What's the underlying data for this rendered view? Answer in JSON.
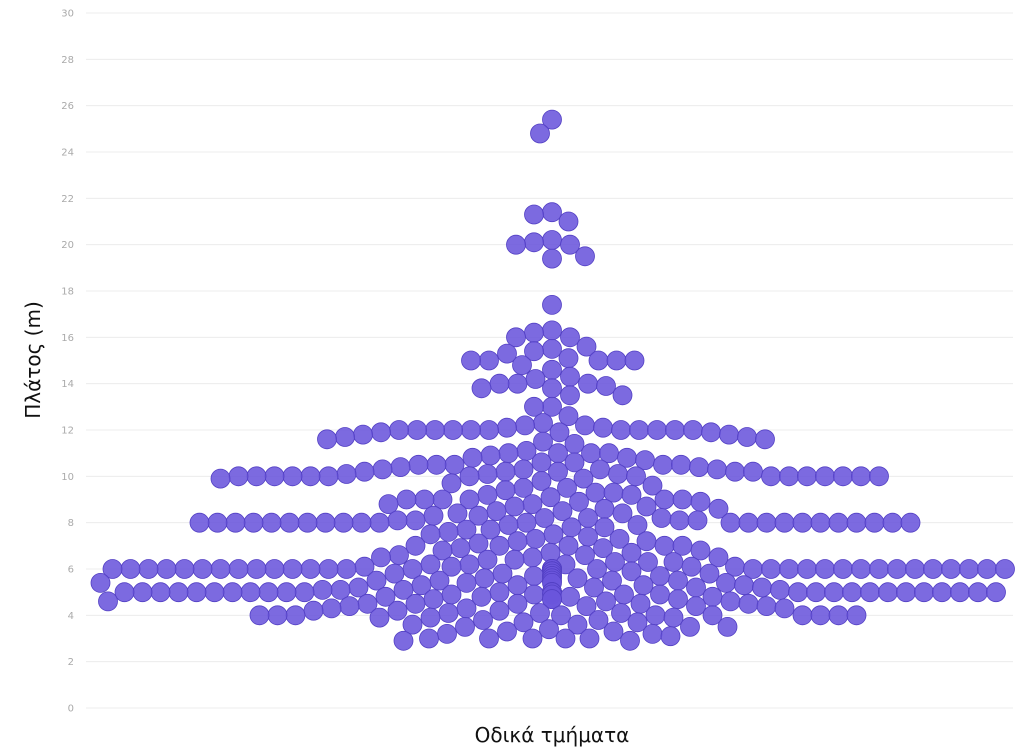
{
  "chart_data": {
    "type": "scatter",
    "title": "",
    "xlabel": "Οδικά τμήματα",
    "ylabel": "Πλάτος (m)",
    "ylim": [
      0,
      30
    ],
    "yticks": [
      0,
      2,
      4,
      6,
      8,
      10,
      12,
      14,
      16,
      18,
      20,
      22,
      24,
      26,
      28,
      30
    ],
    "grid": true,
    "legend": "none",
    "marker_color": "#6a55dc",
    "layout": "beeswarm",
    "values": [
      25.4,
      24.8,
      21.4,
      21.3,
      21.0,
      20.2,
      20.1,
      20.0,
      20.0,
      19.5,
      19.4,
      17.4,
      16.3,
      16.2,
      16.0,
      16.0,
      15.6,
      15.5,
      15.4,
      15.3,
      15.1,
      15.0,
      15.0,
      15.0,
      15.0,
      15.0,
      14.8,
      14.6,
      14.3,
      14.2,
      14.0,
      14.0,
      14.0,
      13.9,
      13.8,
      13.8,
      13.5,
      13.5,
      13.0,
      13.0,
      12.6,
      12.3,
      12.2,
      12.2,
      12.1,
      12.1,
      12.0,
      12.0,
      12.0,
      12.0,
      12.0,
      12.0,
      12.0,
      12.0,
      12.0,
      12.0,
      12.0,
      11.9,
      11.9,
      11.9,
      11.8,
      11.8,
      11.7,
      11.7,
      11.6,
      11.6,
      11.5,
      11.4,
      11.1,
      11.0,
      11.0,
      11.0,
      11.0,
      10.9,
      10.8,
      10.8,
      10.7,
      10.6,
      10.6,
      10.5,
      10.5,
      10.5,
      10.5,
      10.5,
      10.4,
      10.4,
      10.3,
      10.3,
      10.3,
      10.3,
      10.2,
      10.2,
      10.2,
      10.2,
      10.2,
      10.1,
      10.1,
      10.1,
      10.0,
      10.0,
      10.0,
      10.0,
      10.0,
      10.0,
      10.0,
      10.0,
      10.0,
      10.0,
      10.0,
      10.0,
      10.0,
      10.0,
      10.0,
      9.9,
      9.9,
      9.8,
      9.7,
      9.6,
      9.5,
      9.5,
      9.4,
      9.3,
      9.3,
      9.2,
      9.2,
      9.1,
      9.0,
      9.0,
      9.0,
      9.0,
      9.0,
      9.0,
      8.9,
      8.9,
      8.8,
      8.8,
      8.7,
      8.7,
      8.6,
      8.6,
      8.5,
      8.5,
      8.4,
      8.4,
      8.3,
      8.3,
      8.2,
      8.2,
      8.2,
      8.1,
      8.1,
      8.1,
      8.1,
      8.0,
      8.0,
      8.0,
      8.0,
      8.0,
      8.0,
      8.0,
      8.0,
      8.0,
      8.0,
      8.0,
      8.0,
      8.0,
      8.0,
      8.0,
      8.0,
      8.0,
      8.0,
      8.0,
      8.0,
      8.0,
      8.0,
      8.0,
      7.9,
      7.9,
      7.8,
      7.8,
      7.7,
      7.7,
      7.6,
      7.5,
      7.5,
      7.4,
      7.3,
      7.3,
      7.2,
      7.2,
      7.1,
      7.0,
      7.0,
      7.0,
      7.0,
      7.0,
      6.9,
      6.9,
      6.8,
      6.8,
      6.7,
      6.7,
      6.6,
      6.6,
      6.5,
      6.5,
      6.5,
      6.4,
      6.4,
      6.3,
      6.3,
      6.3,
      6.2,
      6.2,
      6.2,
      6.1,
      6.1,
      6.1,
      6.1,
      6.0,
      6.0,
      6.0,
      6.0,
      6.0,
      6.0,
      6.0,
      6.0,
      6.0,
      6.0,
      6.0,
      6.0,
      6.0,
      6.0,
      6.0,
      6.0,
      6.0,
      6.0,
      6.0,
      6.0,
      6.0,
      6.0,
      6.0,
      6.0,
      6.0,
      6.0,
      6.0,
      6.0,
      6.0,
      6.0,
      6.0,
      6.0,
      6.0,
      6.0,
      6.0,
      6.0,
      6.0,
      6.0,
      6.0,
      6.0,
      6.0,
      6.0,
      6.0,
      6.0,
      6.0,
      6.0,
      5.9,
      5.9,
      5.9,
      5.9,
      5.9,
      5.8,
      5.8,
      5.8,
      5.8,
      5.7,
      5.7,
      5.7,
      5.7,
      5.6,
      5.6,
      5.6,
      5.5,
      5.5,
      5.5,
      5.5,
      5.5,
      5.4,
      5.4,
      5.4,
      5.4,
      5.3,
      5.3,
      5.3,
      5.3,
      5.2,
      5.2,
      5.2,
      5.2,
      5.1,
      5.1,
      5.1,
      5.1,
      5.0,
      5.0,
      5.0,
      5.0,
      5.0,
      5.0,
      5.0,
      5.0,
      5.0,
      5.0,
      5.0,
      5.0,
      5.0,
      5.0,
      5.0,
      5.0,
      5.0,
      5.0,
      5.0,
      5.0,
      5.0,
      5.0,
      5.0,
      5.0,
      5.0,
      5.0,
      5.0,
      5.0,
      5.0,
      5.0,
      4.9,
      4.9,
      4.9,
      4.9,
      4.9,
      4.8,
      4.8,
      4.8,
      4.8,
      4.7,
      4.7,
      4.7,
      4.7,
      4.6,
      4.6,
      4.6,
      4.5,
      4.5,
      4.5,
      4.5,
      4.5,
      4.4,
      4.4,
      4.4,
      4.4,
      4.3,
      4.3,
      4.3,
      4.2,
      4.2,
      4.2,
      4.1,
      4.1,
      4.1,
      4.0,
      4.0,
      4.0,
      4.0,
      4.0,
      4.0,
      4.0,
      4.0,
      4.0,
      4.0,
      3.9,
      3.9,
      3.9,
      3.8,
      3.8,
      3.7,
      3.7,
      3.6,
      3.6,
      3.5,
      3.5,
      3.5,
      3.4,
      3.3,
      3.3,
      3.2,
      3.2,
      3.1,
      3.0,
      3.0,
      3.0,
      3.0,
      3.0,
      2.9,
      2.9
    ]
  }
}
